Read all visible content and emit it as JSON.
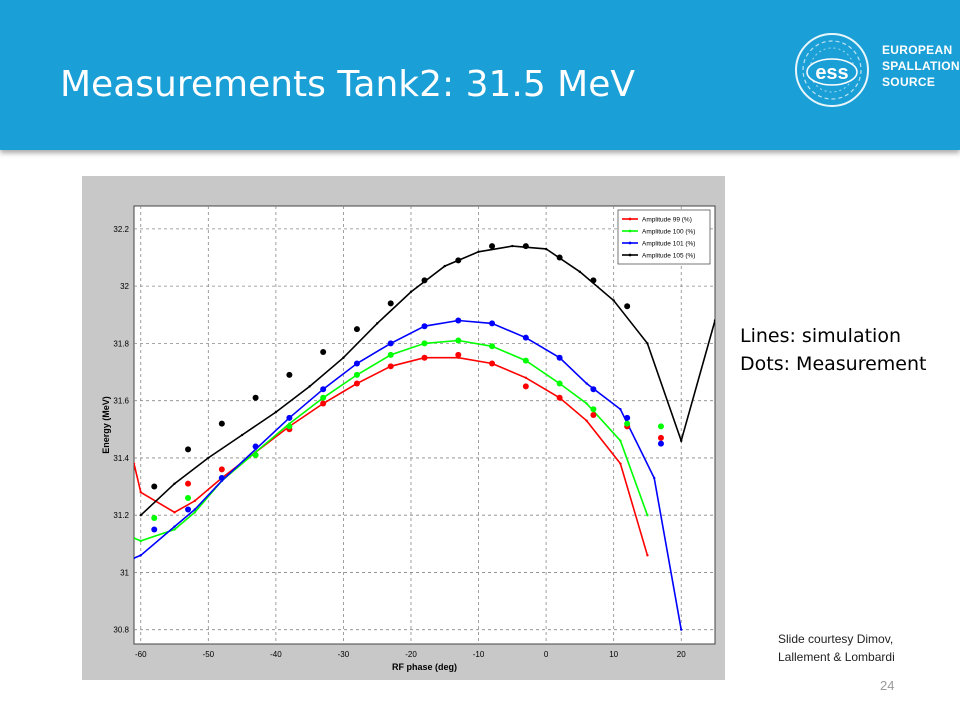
{
  "slide": {
    "title": "Measurements Tank2: 31.5 MeV",
    "logo_text": [
      "EUROPEAN",
      "SPALLATION",
      "SOURCE"
    ],
    "logo_mark": "ess",
    "notes": [
      "Lines: simulation",
      "Dots: Measurement"
    ],
    "credit": [
      "Slide courtesy Dimov,",
      "Lallement & Lombardi"
    ],
    "page_number": "24",
    "colors": {
      "header": "#1a9fd6",
      "chart_bg": "#c8c8c8"
    }
  },
  "chart_data": {
    "type": "line",
    "xlabel": "RF phase (deg)",
    "ylabel": "Energy (MeV)",
    "xlim": [
      -61,
      25
    ],
    "ylim": [
      30.75,
      32.28
    ],
    "xticks": [
      -60,
      -50,
      -40,
      -30,
      -20,
      -10,
      0,
      10,
      20
    ],
    "yticks": [
      30.8,
      31,
      31.2,
      31.4,
      31.6,
      31.8,
      32,
      32.2
    ],
    "grid": true,
    "legend_position": "top-right",
    "series": [
      {
        "name": "Amplitude 99 (%)",
        "color": "#ff0000",
        "x": [
          -61,
          -60,
          -55,
          -52,
          -48,
          -43,
          -38,
          -33,
          -28,
          -23,
          -18,
          -13,
          -8,
          -3,
          2,
          6,
          11,
          15
        ],
        "y": [
          31.38,
          31.28,
          31.21,
          31.25,
          31.33,
          31.42,
          31.51,
          31.59,
          31.66,
          31.72,
          31.75,
          31.75,
          31.73,
          31.68,
          31.61,
          31.53,
          31.38,
          31.06
        ]
      },
      {
        "name": "Amplitude 100 (%)",
        "color": "#00ff00",
        "x": [
          -61,
          -60,
          -55,
          -52,
          -48,
          -43,
          -38,
          -33,
          -28,
          -23,
          -18,
          -13,
          -8,
          -3,
          2,
          6,
          11,
          15
        ],
        "y": [
          31.12,
          31.11,
          31.15,
          31.21,
          31.32,
          31.42,
          31.52,
          31.61,
          31.69,
          31.76,
          31.8,
          31.81,
          31.79,
          31.74,
          31.66,
          31.59,
          31.46,
          31.2
        ]
      },
      {
        "name": "Amplitude 101 (%)",
        "color": "#0000ff",
        "x": [
          -61,
          -60,
          -55,
          -52,
          -48,
          -43,
          -38,
          -33,
          -28,
          -23,
          -18,
          -13,
          -8,
          -3,
          2,
          6,
          11,
          16,
          20
        ],
        "y": [
          31.05,
          31.06,
          31.16,
          31.22,
          31.32,
          31.43,
          31.54,
          31.64,
          31.73,
          31.8,
          31.86,
          31.88,
          31.87,
          31.82,
          31.75,
          31.66,
          31.57,
          31.33,
          30.8
        ]
      },
      {
        "name": "Amplitude 105 (%)",
        "color": "#000000",
        "x": [
          -60,
          -55,
          -50,
          -45,
          -40,
          -35,
          -30,
          -25,
          -20,
          -15,
          -10,
          -5,
          0,
          5,
          10,
          15,
          20,
          25
        ],
        "y": [
          31.2,
          31.31,
          31.4,
          31.48,
          31.56,
          31.65,
          31.75,
          31.87,
          31.98,
          32.07,
          32.12,
          32.14,
          32.13,
          32.05,
          31.95,
          31.8,
          31.46,
          31.88
        ]
      }
    ],
    "measurements": [
      {
        "name": "Amplitude 99 (%)",
        "color": "#ff0000",
        "x": [
          -53,
          -48,
          -43,
          -38,
          -33,
          -28,
          -23,
          -18,
          -13,
          -8,
          -3,
          2,
          7,
          12,
          17
        ],
        "y": [
          31.31,
          31.36,
          31.41,
          31.5,
          31.59,
          31.66,
          31.72,
          31.75,
          31.76,
          31.73,
          31.65,
          31.61,
          31.55,
          31.51,
          31.47
        ]
      },
      {
        "name": "Amplitude 100 (%)",
        "color": "#00ff00",
        "x": [
          -58,
          -53,
          -48,
          -43,
          -38,
          -33,
          -28,
          -23,
          -18,
          -13,
          -8,
          -3,
          2,
          7,
          12,
          17
        ],
        "y": [
          31.19,
          31.26,
          31.33,
          31.41,
          31.51,
          31.61,
          31.69,
          31.76,
          31.8,
          31.81,
          31.79,
          31.74,
          31.66,
          31.57,
          31.52,
          31.51
        ]
      },
      {
        "name": "Amplitude 101 (%)",
        "color": "#0000ff",
        "x": [
          -58,
          -53,
          -48,
          -43,
          -38,
          -33,
          -28,
          -23,
          -18,
          -13,
          -8,
          -3,
          2,
          7,
          12,
          17
        ],
        "y": [
          31.15,
          31.22,
          31.33,
          31.44,
          31.54,
          31.64,
          31.73,
          31.8,
          31.86,
          31.88,
          31.87,
          31.82,
          31.75,
          31.64,
          31.54,
          31.45
        ]
      },
      {
        "name": "Amplitude 105 (%)",
        "color": "#000000",
        "x": [
          -58,
          -53,
          -48,
          -43,
          -38,
          -33,
          -28,
          -23,
          -18,
          -13,
          -8,
          -3,
          2,
          7,
          12
        ],
        "y": [
          31.3,
          31.43,
          31.52,
          31.61,
          31.69,
          31.77,
          31.85,
          31.94,
          32.02,
          32.09,
          32.14,
          32.14,
          32.1,
          32.02,
          31.93
        ]
      }
    ]
  }
}
